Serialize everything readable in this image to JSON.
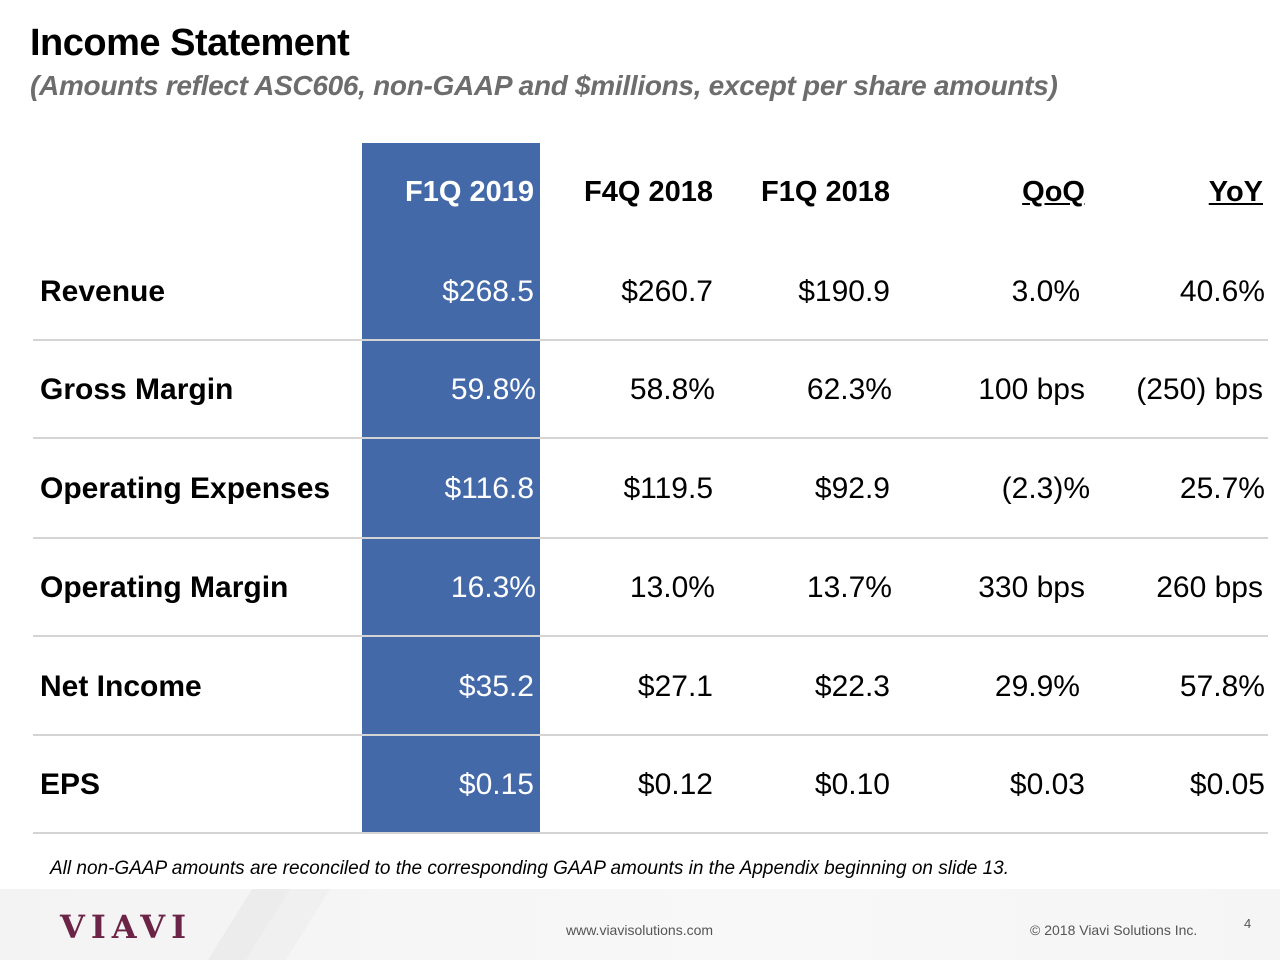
{
  "header": {
    "title": "Income Statement",
    "subtitle": "(Amounts reflect ASC606, non-GAAP and $millions, except per share amounts)"
  },
  "table": {
    "columns": [
      "F1Q 2019",
      "F4Q 2018",
      "F1Q 2018",
      "QoQ",
      "YoY"
    ],
    "rows": [
      {
        "label": "Revenue",
        "values": [
          "$268.5",
          "$260.7",
          "$190.9",
          "3.0%",
          "40.6%"
        ]
      },
      {
        "label": "Gross Margin",
        "values": [
          "59.8%",
          "58.8%",
          "62.3%",
          "100 bps",
          "(250) bps"
        ]
      },
      {
        "label": "Operating Expenses",
        "values": [
          "$116.8",
          "$119.5",
          "$92.9",
          "(2.3)%",
          "25.7%"
        ]
      },
      {
        "label": "Operating Margin",
        "values": [
          "16.3%",
          "13.0%",
          "13.7%",
          "330 bps",
          "260 bps"
        ]
      },
      {
        "label": "Net Income",
        "values": [
          "$35.2",
          "$27.1",
          "$22.3",
          "29.9%",
          "57.8%"
        ]
      },
      {
        "label": "EPS",
        "values": [
          "$0.15",
          "$0.12",
          "$0.10",
          "$0.03",
          "$0.05"
        ]
      }
    ]
  },
  "footnote": "All non-GAAP amounts are reconciled to the corresponding GAAP amounts in the Appendix beginning on slide 13.",
  "footer": {
    "logo": "VIAVI",
    "url": "www.viavisolutions.com",
    "copyright": "© 2018 Viavi Solutions Inc.",
    "page": "4"
  },
  "colors": {
    "highlight": "#4369a8",
    "logo": "#6b2445"
  }
}
